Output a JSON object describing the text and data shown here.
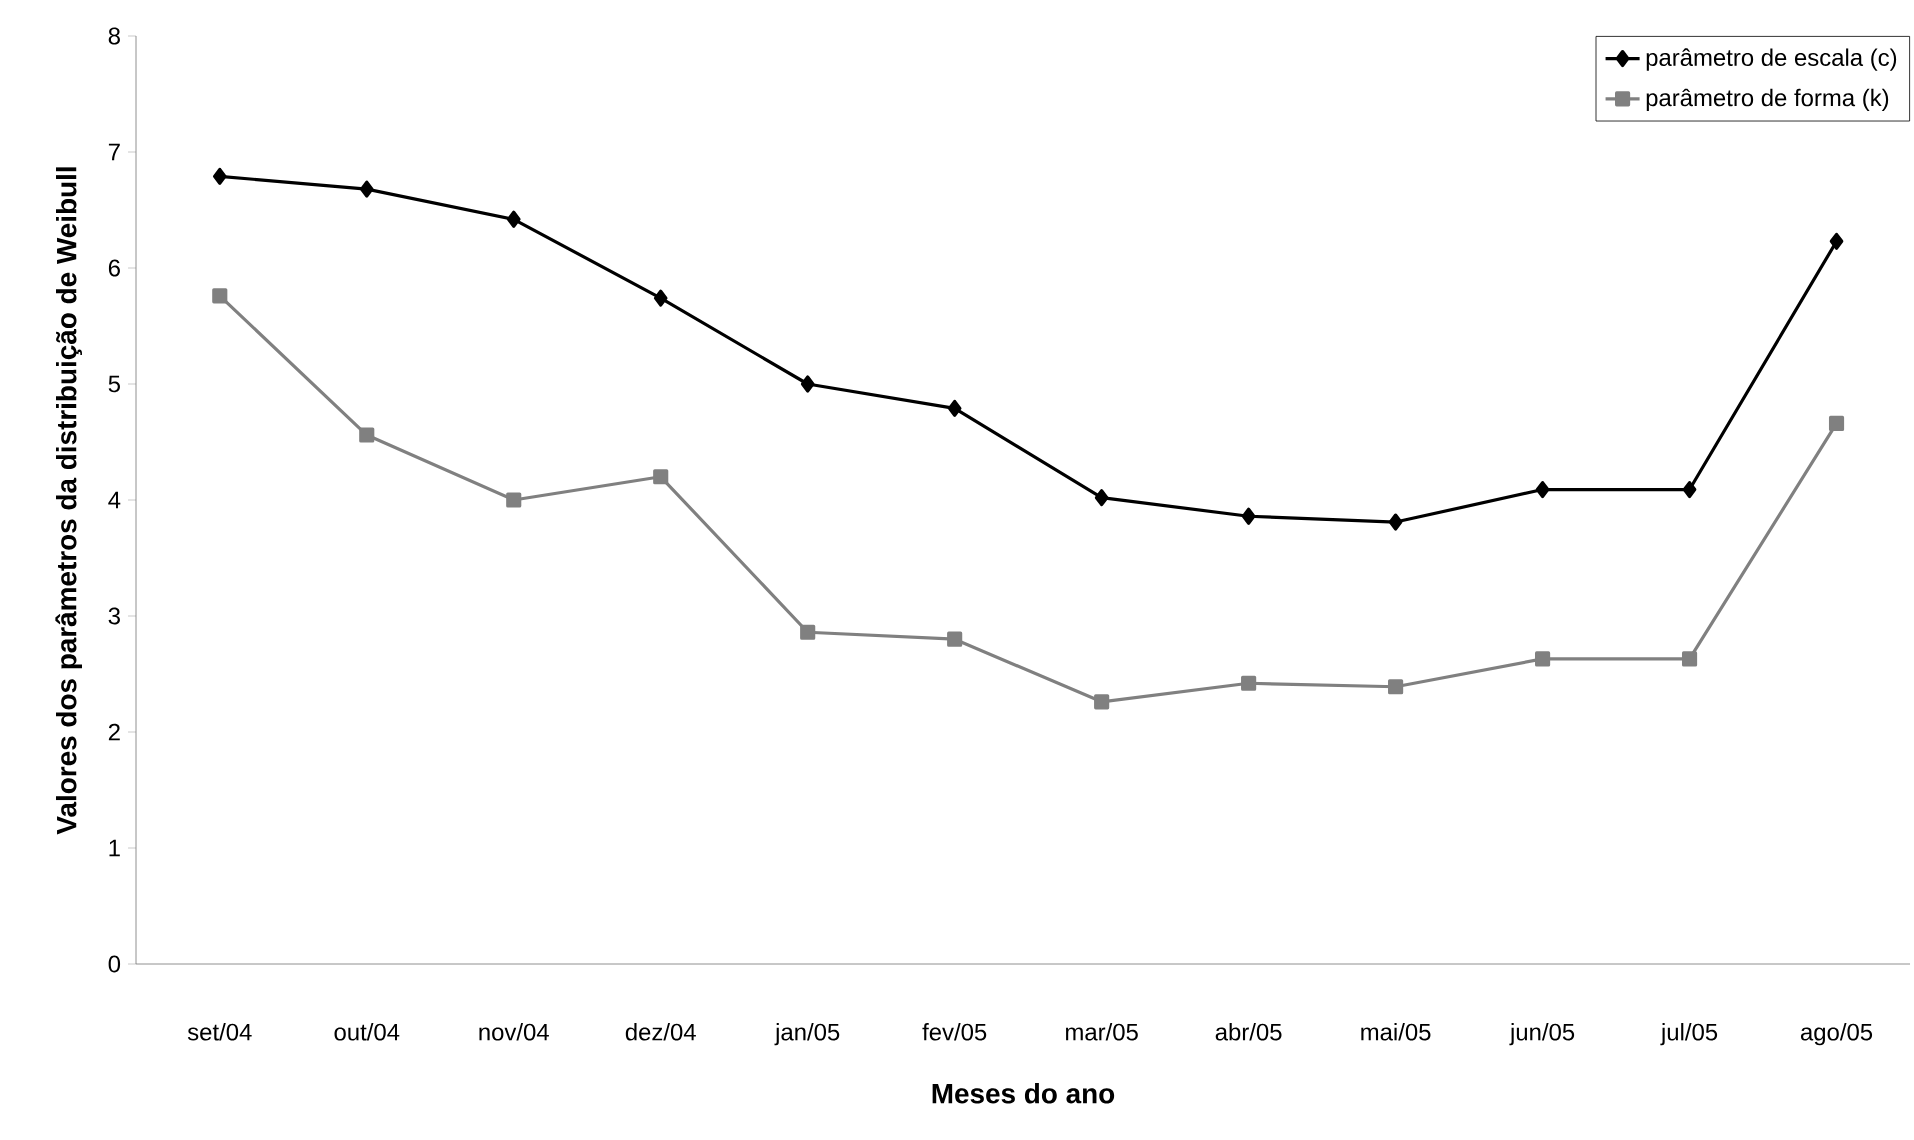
{
  "chart_data": {
    "type": "line",
    "xlabel": "Meses do ano",
    "ylabel": "Valores dos parâmetros da distribuição de Weibull",
    "categories": [
      "set/04",
      "out/04",
      "nov/04",
      "dez/04",
      "jan/05",
      "fev/05",
      "mar/05",
      "abr/05",
      "mai/05",
      "jun/05",
      "jul/05",
      "ago/05"
    ],
    "ylim": [
      0,
      8
    ],
    "yticks": [
      0,
      1,
      2,
      3,
      4,
      5,
      6,
      7,
      8
    ],
    "legend": "top right",
    "line_style": "solid",
    "series": [
      {
        "name": "parâmetro de escala (c)",
        "color": "#000000",
        "marker": "diamond",
        "values": [
          6.79,
          6.68,
          6.42,
          5.74,
          5.0,
          4.79,
          4.02,
          3.86,
          3.81,
          4.09,
          4.09,
          6.23
        ]
      },
      {
        "name": "parâmetro de forma (k)",
        "color": "#808080",
        "marker": "square",
        "values": [
          5.76,
          4.56,
          4.0,
          4.2,
          2.86,
          2.8,
          2.26,
          2.42,
          2.39,
          2.63,
          2.63,
          4.66
        ]
      }
    ]
  }
}
